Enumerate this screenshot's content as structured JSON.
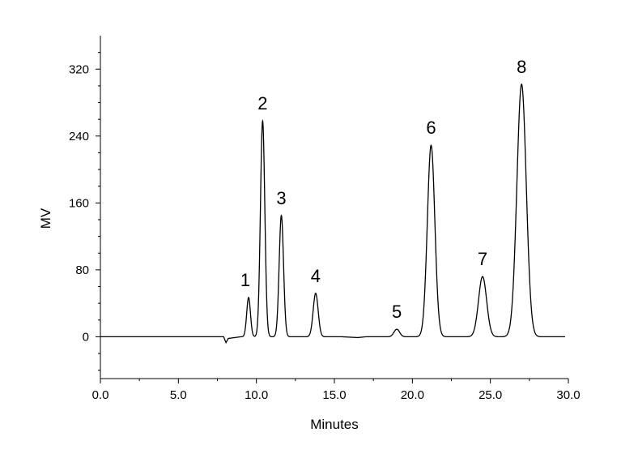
{
  "chart_data": {
    "type": "line",
    "title": "",
    "xlabel": "Minutes",
    "ylabel": "MV",
    "xlim": [
      0,
      30
    ],
    "ylim": [
      -50,
      360
    ],
    "x_ticks": [
      0,
      5,
      10,
      15,
      20,
      25,
      30
    ],
    "x_tick_labels": [
      "0.0",
      "5.0",
      "10.0",
      "15.0",
      "20.0",
      "25.0",
      "30.0"
    ],
    "y_ticks": [
      0,
      80,
      160,
      240,
      320
    ],
    "y_tick_labels": [
      "0",
      "80",
      "160",
      "240",
      "320"
    ],
    "grid": false,
    "legend": "none",
    "line_color": "#000000",
    "baseline": {
      "x": [
        0,
        7.9,
        8.05,
        8.2,
        9.0,
        15.5,
        16.5,
        17.0,
        30.0
      ],
      "y": [
        0,
        0,
        -7,
        -2,
        0,
        0,
        -1,
        0,
        0
      ]
    },
    "peaks": [
      {
        "label": "1",
        "time": 9.5,
        "height": 47,
        "width": 0.12
      },
      {
        "label": "2",
        "time": 10.4,
        "height": 258,
        "width": 0.14
      },
      {
        "label": "3",
        "time": 11.6,
        "height": 145,
        "width": 0.14
      },
      {
        "label": "4",
        "time": 13.8,
        "height": 52,
        "width": 0.16
      },
      {
        "label": "5",
        "time": 19.0,
        "height": 9,
        "width": 0.18
      },
      {
        "label": "6",
        "time": 21.2,
        "height": 229,
        "width": 0.24
      },
      {
        "label": "7",
        "time": 24.5,
        "height": 72,
        "width": 0.26
      },
      {
        "label": "8",
        "time": 27.0,
        "height": 302,
        "width": 0.3
      }
    ]
  }
}
